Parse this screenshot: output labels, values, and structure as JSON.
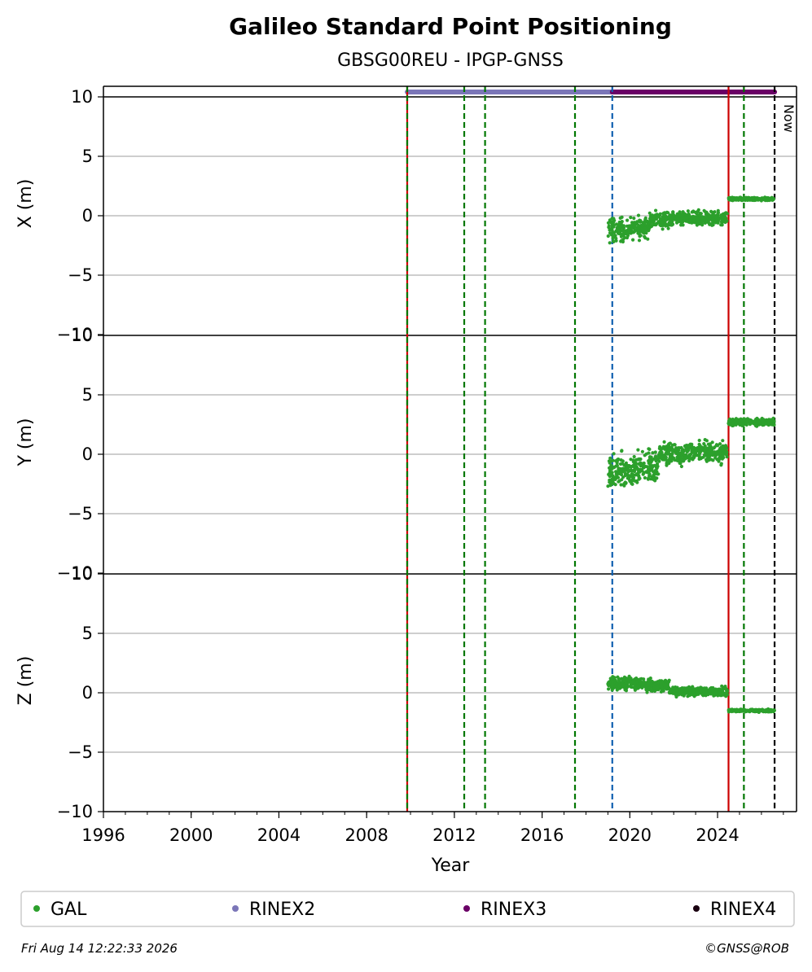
{
  "chart_data": {
    "type": "scatter",
    "title": "Galileo Standard Point Positioning",
    "subtitle": "GBSG00REU - IPGP-GNSS",
    "xlabel": "Year",
    "xlim": [
      1996,
      2027.6
    ],
    "x_ticks": [
      1996,
      2000,
      2004,
      2008,
      2012,
      2016,
      2020,
      2024
    ],
    "panels": [
      {
        "ylabel": "X (m)",
        "ylim": [
          -10,
          10
        ],
        "y_ticks": [
          -10,
          -5,
          0,
          5,
          10
        ]
      },
      {
        "ylabel": "Y (m)",
        "ylim": [
          -10,
          10
        ],
        "y_ticks": [
          -10,
          -5,
          0,
          5,
          10
        ]
      },
      {
        "ylabel": "Z (m)",
        "ylim": [
          -10,
          10
        ],
        "y_ticks": [
          -10,
          -5,
          0,
          5,
          10
        ]
      }
    ],
    "vertical_lines": [
      {
        "x": 2009.85,
        "color": "#cc0000",
        "style": "solid"
      },
      {
        "x": 2009.85,
        "color": "#007700",
        "style": "dashed"
      },
      {
        "x": 2012.45,
        "color": "#007700",
        "style": "dashed"
      },
      {
        "x": 2013.4,
        "color": "#007700",
        "style": "dashed"
      },
      {
        "x": 2017.5,
        "color": "#007700",
        "style": "dashed"
      },
      {
        "x": 2019.2,
        "color": "#1060b0",
        "style": "dashed"
      },
      {
        "x": 2024.5,
        "color": "#cc0000",
        "style": "solid"
      },
      {
        "x": 2025.2,
        "color": "#007700",
        "style": "dashed"
      },
      {
        "x": 2026.6,
        "color": "#000000",
        "style": "dashed",
        "label": "Now"
      }
    ],
    "rinex_bars": [
      {
        "name": "RINEX2",
        "start": 2009.85,
        "end": 2019.2,
        "color": "#7b76b8"
      },
      {
        "name": "RINEX3",
        "start": 2019.2,
        "end": 2026.6,
        "color": "#6a0066"
      }
    ],
    "series": [
      {
        "name": "GAL",
        "color": "#2ca02c",
        "panel": "X",
        "segments": [
          {
            "start": 2019.0,
            "end": 2019.9,
            "mean": -1.2,
            "spread": 0.9
          },
          {
            "start": 2019.9,
            "end": 2020.9,
            "mean": -1.0,
            "spread": 0.8
          },
          {
            "start": 2020.9,
            "end": 2022.0,
            "mean": -0.3,
            "spread": 0.6
          },
          {
            "start": 2022.0,
            "end": 2024.45,
            "mean": -0.2,
            "spread": 0.5
          },
          {
            "start": 2024.5,
            "end": 2026.6,
            "mean": 1.4,
            "spread": 0.12
          }
        ]
      },
      {
        "name": "GAL",
        "color": "#2ca02c",
        "panel": "Y",
        "segments": [
          {
            "start": 2019.0,
            "end": 2020.2,
            "mean": -1.5,
            "spread": 1.3
          },
          {
            "start": 2020.2,
            "end": 2021.3,
            "mean": -1.0,
            "spread": 1.2
          },
          {
            "start": 2021.3,
            "end": 2022.5,
            "mean": 0.0,
            "spread": 0.9
          },
          {
            "start": 2022.5,
            "end": 2024.45,
            "mean": 0.2,
            "spread": 0.8
          },
          {
            "start": 2024.5,
            "end": 2026.6,
            "mean": 2.7,
            "spread": 0.25
          }
        ]
      },
      {
        "name": "GAL",
        "color": "#2ca02c",
        "panel": "Z",
        "segments": [
          {
            "start": 2019.0,
            "end": 2020.5,
            "mean": 0.8,
            "spread": 0.5
          },
          {
            "start": 2020.5,
            "end": 2021.8,
            "mean": 0.6,
            "spread": 0.45
          },
          {
            "start": 2021.8,
            "end": 2024.45,
            "mean": 0.1,
            "spread": 0.35
          },
          {
            "start": 2024.5,
            "end": 2026.6,
            "mean": -1.5,
            "spread": 0.1
          }
        ]
      }
    ],
    "legend": [
      {
        "label": "GAL",
        "color": "#2ca02c"
      },
      {
        "label": "RINEX2",
        "color": "#7b76b8"
      },
      {
        "label": "RINEX3",
        "color": "#6a0066"
      },
      {
        "label": "RINEX4",
        "color": "#1a0010"
      }
    ],
    "now_label": "Now",
    "footer_left": "Fri Aug 14 12:22:33 2026",
    "footer_right": "©GNSS@ROB"
  }
}
